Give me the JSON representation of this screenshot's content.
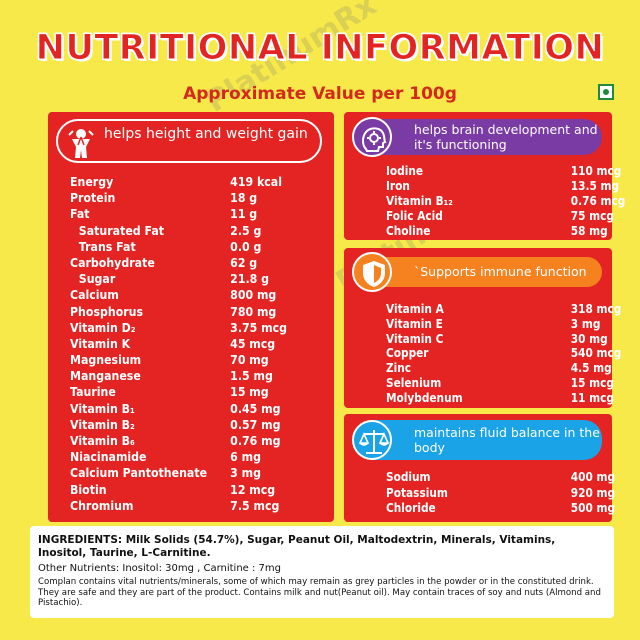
{
  "header": {
    "title": "NUTRITIONAL INFORMATION",
    "subtitle": "Approximate Value per 100g"
  },
  "colors": {
    "background": "#f7e94a",
    "panel_red": "#e32423",
    "brain_purple": "#7a3ba5",
    "immune_orange": "#f5811f",
    "fluid_blue": "#1aa3e6",
    "veg_green": "#1d8b3a"
  },
  "height_panel": {
    "heading": "helps height and weight gain",
    "icon": "child-growth-icon",
    "rows": [
      {
        "name": "Energy",
        "value": "419 kcal"
      },
      {
        "name": "Protein",
        "value": "18 g"
      },
      {
        "name": "Fat",
        "value": "11 g"
      },
      {
        "name": "Saturated Fat",
        "value": "2.5 g",
        "indent": true
      },
      {
        "name": "Trans Fat",
        "value": "0.0 g",
        "indent": true
      },
      {
        "name": "Carbohydrate",
        "value": "62 g"
      },
      {
        "name": "Sugar",
        "value": "21.8 g",
        "indent": true
      },
      {
        "name": "Calcium",
        "value": "800 mg"
      },
      {
        "name": "Phosphorus",
        "value": "780 mg"
      },
      {
        "name": "Vitamin D₂",
        "value": "3.75 mcg"
      },
      {
        "name": "Vitamin K",
        "value": "45 mcg"
      },
      {
        "name": "Magnesium",
        "value": "70 mg"
      },
      {
        "name": "Manganese",
        "value": "1.5 mg"
      },
      {
        "name": "Taurine",
        "value": "15 mg"
      },
      {
        "name": "Vitamin B₁",
        "value": "0.45 mg"
      },
      {
        "name": "Vitamin B₂",
        "value": "0.57 mg"
      },
      {
        "name": "Vitamin B₆",
        "value": "0.76 mg"
      },
      {
        "name": "Niacinamide",
        "value": "6 mg"
      },
      {
        "name": "Calcium Pantothenate",
        "value": "3 mg"
      },
      {
        "name": "Biotin",
        "value": "12 mcg"
      },
      {
        "name": "Chromium",
        "value": "7.5 mcg"
      }
    ]
  },
  "brain_panel": {
    "heading": "helps brain development and it's functioning",
    "icon": "brain-gear-icon",
    "rows": [
      {
        "name": "Iodine",
        "value": "110 mcg"
      },
      {
        "name": "Iron",
        "value": "13.5 mg"
      },
      {
        "name": "Vitamin B₁₂",
        "value": "0.76 mcg"
      },
      {
        "name": "Folic Acid",
        "value": "75 mcg"
      },
      {
        "name": "Choline",
        "value": "58 mg"
      }
    ]
  },
  "immune_panel": {
    "heading": "`Supports immune function",
    "icon": "shield-icon",
    "rows": [
      {
        "name": "Vitamin A",
        "value": "318 mcg"
      },
      {
        "name": "Vitamin E",
        "value": "3 mg"
      },
      {
        "name": "Vitamin C",
        "value": "30 mg"
      },
      {
        "name": "Copper",
        "value": "540 mcg"
      },
      {
        "name": "Zinc",
        "value": "4.5 mg"
      },
      {
        "name": "Selenium",
        "value": "15 mcg"
      },
      {
        "name": "Molybdenum",
        "value": "11 mcg"
      }
    ]
  },
  "fluid_panel": {
    "heading": "maintains fluid balance in the body",
    "icon": "balance-scale-icon",
    "rows": [
      {
        "name": "Sodium",
        "value": "400 mg"
      },
      {
        "name": "Potassium",
        "value": "920 mg"
      },
      {
        "name": "Chloride",
        "value": "500 mg"
      }
    ]
  },
  "ingredients": {
    "label": "INGREDIENTS:",
    "text": "Milk Solids (54.7%), Sugar, Peanut Oil, Maltodextrin, Minerals, Vitamins, Inositol, Taurine, L-Carnitine.",
    "other_nutrients": "Other Nutrients: Inositol: 30mg , Carnitine  : 7mg",
    "note": "Complan contains vital nutrients/minerals, some of which may remain as grey particles in the powder or in the constituted drink. They are safe and they are part of the product. Contains milk and nut(Peanut oil). May contain traces of soy and nuts (Almond and Pistachio)."
  },
  "watermark": {
    "text": "PlatinumRx"
  },
  "veg_mark": {
    "icon": "vegetarian-mark-icon"
  }
}
